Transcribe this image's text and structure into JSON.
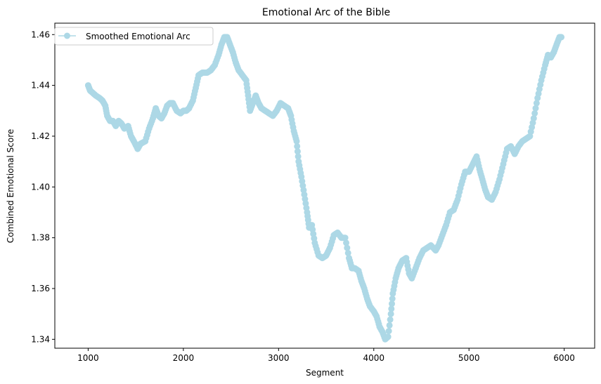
{
  "chart_data": {
    "type": "line",
    "title": "Emotional Arc of the Bible",
    "xlabel": "Segment",
    "ylabel": "Combined Emotional Score",
    "xlim": [
      650,
      6320
    ],
    "ylim": [
      1.3365,
      1.4645
    ],
    "xticks": [
      1000,
      2000,
      3000,
      4000,
      5000,
      6000
    ],
    "xtick_labels": [
      "1000",
      "2000",
      "3000",
      "4000",
      "5000",
      "6000"
    ],
    "yticks": [
      1.34,
      1.36,
      1.38,
      1.4,
      1.42,
      1.44,
      1.46
    ],
    "ytick_labels": [
      "1.34",
      "1.36",
      "1.38",
      "1.40",
      "1.42",
      "1.44",
      "1.46"
    ],
    "grid": false,
    "legend_position": "upper-left",
    "series": [
      {
        "name": "Smoothed Emotional Arc",
        "color": "#add8e6",
        "marker": "circle",
        "points": [
          [
            1000,
            1.44
          ],
          [
            1020,
            1.438
          ],
          [
            1050,
            1.437
          ],
          [
            1080,
            1.436
          ],
          [
            1120,
            1.435
          ],
          [
            1150,
            1.434
          ],
          [
            1180,
            1.432
          ],
          [
            1200,
            1.428
          ],
          [
            1230,
            1.426
          ],
          [
            1260,
            1.426
          ],
          [
            1290,
            1.424
          ],
          [
            1320,
            1.426
          ],
          [
            1350,
            1.425
          ],
          [
            1380,
            1.423
          ],
          [
            1420,
            1.424
          ],
          [
            1450,
            1.42
          ],
          [
            1480,
            1.418
          ],
          [
            1520,
            1.415
          ],
          [
            1550,
            1.417
          ],
          [
            1600,
            1.418
          ],
          [
            1640,
            1.423
          ],
          [
            1680,
            1.427
          ],
          [
            1710,
            1.431
          ],
          [
            1740,
            1.428
          ],
          [
            1770,
            1.427
          ],
          [
            1800,
            1.429
          ],
          [
            1830,
            1.432
          ],
          [
            1860,
            1.433
          ],
          [
            1890,
            1.433
          ],
          [
            1930,
            1.43
          ],
          [
            1970,
            1.429
          ],
          [
            2000,
            1.43
          ],
          [
            2030,
            1.43
          ],
          [
            2060,
            1.431
          ],
          [
            2100,
            1.434
          ],
          [
            2130,
            1.439
          ],
          [
            2160,
            1.444
          ],
          [
            2200,
            1.445
          ],
          [
            2250,
            1.445
          ],
          [
            2290,
            1.446
          ],
          [
            2330,
            1.448
          ],
          [
            2370,
            1.452
          ],
          [
            2400,
            1.456
          ],
          [
            2430,
            1.459
          ],
          [
            2460,
            1.459
          ],
          [
            2490,
            1.456
          ],
          [
            2520,
            1.453
          ],
          [
            2550,
            1.449
          ],
          [
            2580,
            1.446
          ],
          [
            2620,
            1.444
          ],
          [
            2660,
            1.442
          ],
          [
            2680,
            1.436
          ],
          [
            2700,
            1.43
          ],
          [
            2730,
            1.433
          ],
          [
            2760,
            1.436
          ],
          [
            2790,
            1.433
          ],
          [
            2820,
            1.431
          ],
          [
            2860,
            1.43
          ],
          [
            2900,
            1.429
          ],
          [
            2940,
            1.428
          ],
          [
            2980,
            1.43
          ],
          [
            3020,
            1.433
          ],
          [
            3060,
            1.432
          ],
          [
            3100,
            1.431
          ],
          [
            3130,
            1.428
          ],
          [
            3160,
            1.422
          ],
          [
            3190,
            1.418
          ],
          [
            3210,
            1.41
          ],
          [
            3240,
            1.404
          ],
          [
            3270,
            1.397
          ],
          [
            3300,
            1.39
          ],
          [
            3320,
            1.384
          ],
          [
            3350,
            1.385
          ],
          [
            3380,
            1.378
          ],
          [
            3420,
            1.373
          ],
          [
            3460,
            1.372
          ],
          [
            3500,
            1.373
          ],
          [
            3540,
            1.376
          ],
          [
            3580,
            1.381
          ],
          [
            3620,
            1.382
          ],
          [
            3660,
            1.38
          ],
          [
            3700,
            1.38
          ],
          [
            3740,
            1.372
          ],
          [
            3770,
            1.368
          ],
          [
            3800,
            1.368
          ],
          [
            3840,
            1.367
          ],
          [
            3870,
            1.363
          ],
          [
            3900,
            1.36
          ],
          [
            3930,
            1.356
          ],
          [
            3960,
            1.353
          ],
          [
            4000,
            1.351
          ],
          [
            4030,
            1.349
          ],
          [
            4060,
            1.345
          ],
          [
            4090,
            1.343
          ],
          [
            4120,
            1.34
          ],
          [
            4150,
            1.341
          ],
          [
            4180,
            1.35
          ],
          [
            4200,
            1.358
          ],
          [
            4230,
            1.364
          ],
          [
            4260,
            1.368
          ],
          [
            4300,
            1.371
          ],
          [
            4340,
            1.372
          ],
          [
            4370,
            1.366
          ],
          [
            4400,
            1.364
          ],
          [
            4440,
            1.368
          ],
          [
            4480,
            1.372
          ],
          [
            4520,
            1.375
          ],
          [
            4560,
            1.376
          ],
          [
            4600,
            1.377
          ],
          [
            4650,
            1.375
          ],
          [
            4680,
            1.377
          ],
          [
            4720,
            1.381
          ],
          [
            4760,
            1.385
          ],
          [
            4800,
            1.39
          ],
          [
            4840,
            1.391
          ],
          [
            4880,
            1.395
          ],
          [
            4920,
            1.401
          ],
          [
            4960,
            1.406
          ],
          [
            5000,
            1.406
          ],
          [
            5040,
            1.409
          ],
          [
            5080,
            1.412
          ],
          [
            5110,
            1.407
          ],
          [
            5140,
            1.403
          ],
          [
            5170,
            1.399
          ],
          [
            5200,
            1.396
          ],
          [
            5240,
            1.395
          ],
          [
            5280,
            1.398
          ],
          [
            5320,
            1.403
          ],
          [
            5360,
            1.409
          ],
          [
            5400,
            1.415
          ],
          [
            5440,
            1.416
          ],
          [
            5480,
            1.413
          ],
          [
            5520,
            1.416
          ],
          [
            5560,
            1.418
          ],
          [
            5600,
            1.419
          ],
          [
            5640,
            1.42
          ],
          [
            5680,
            1.427
          ],
          [
            5720,
            1.435
          ],
          [
            5760,
            1.442
          ],
          [
            5800,
            1.448
          ],
          [
            5830,
            1.452
          ],
          [
            5860,
            1.451
          ],
          [
            5890,
            1.453
          ],
          [
            5920,
            1.456
          ],
          [
            5950,
            1.459
          ],
          [
            5970,
            1.459
          ]
        ]
      }
    ]
  }
}
